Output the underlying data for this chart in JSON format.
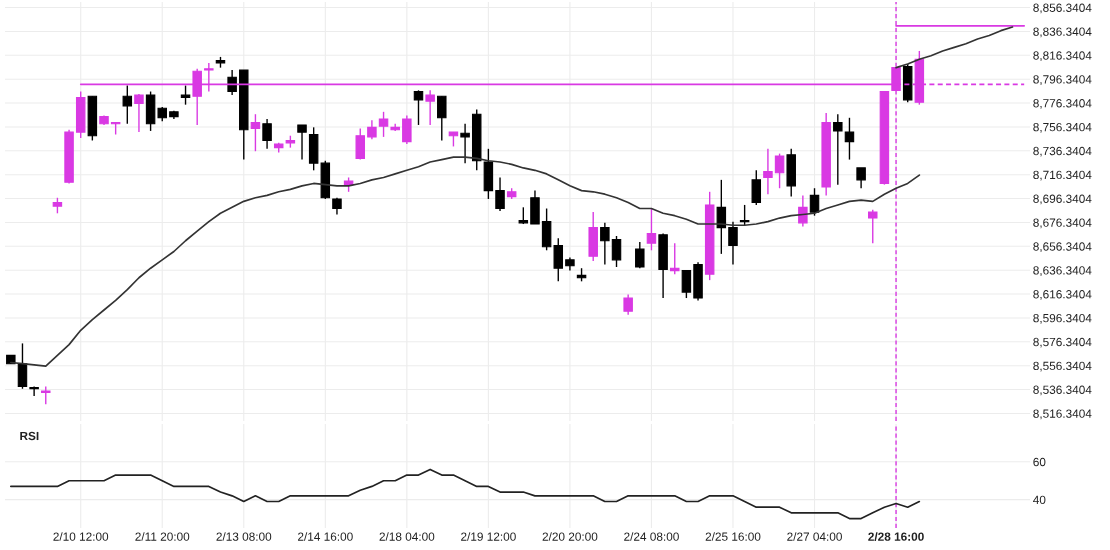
{
  "chart_data": [
    {
      "type": "candlestick",
      "categories": [
        null,
        null,
        null,
        null,
        null,
        null,
        "2/10 12:00",
        null,
        null,
        null,
        null,
        null,
        null,
        "2/11 20:00",
        null,
        null,
        null,
        null,
        null,
        null,
        "2/13 08:00",
        null,
        null,
        null,
        null,
        null,
        null,
        "2/14 16:00",
        null,
        null,
        null,
        null,
        null,
        null,
        "2/18 04:00",
        null,
        null,
        null,
        null,
        null,
        null,
        "2/19 12:00",
        null,
        null,
        null,
        null,
        null,
        null,
        "2/20 20:00",
        null,
        null,
        null,
        null,
        null,
        null,
        "2/24 08:00",
        null,
        null,
        null,
        null,
        null,
        null,
        "2/25 16:00",
        null,
        null,
        null,
        null,
        null,
        null,
        "2/27 04:00",
        null,
        null,
        null,
        null,
        null,
        null,
        "2/28 16:00",
        null,
        null,
        null,
        null,
        null,
        null,
        null,
        null,
        null,
        null,
        null
      ],
      "ohlc": [
        [
          8565,
          8565,
          8558,
          8558
        ],
        [
          8558,
          8575,
          8537,
          8539
        ],
        [
          8538,
          8539,
          8531,
          8537
        ],
        [
          8534,
          8539,
          8524,
          8535
        ],
        [
          8690,
          8697,
          8684,
          8693
        ],
        [
          8710,
          8754,
          8709,
          8752
        ],
        [
          8752,
          8786,
          8747,
          8781
        ],
        [
          8782,
          8782,
          8745,
          8749
        ],
        [
          8759,
          8766,
          8758,
          8765
        ],
        [
          8759,
          8760,
          8750,
          8760
        ],
        [
          8782,
          8791,
          8759,
          8774
        ],
        [
          8776,
          8784,
          8752,
          8783
        ],
        [
          8783,
          8786,
          8753,
          8759
        ],
        [
          8772,
          8773,
          8761,
          8764
        ],
        [
          8769,
          8770,
          8763,
          8765
        ],
        [
          8783,
          8791,
          8775,
          8781
        ],
        [
          8782,
          8805,
          8758,
          8803
        ],
        [
          8804,
          8810,
          8786,
          8805
        ],
        [
          8812,
          8815,
          8806,
          8810
        ],
        [
          8798,
          8804,
          8783,
          8786
        ],
        [
          8804,
          8804,
          8729,
          8754
        ],
        [
          8755,
          8767,
          8736,
          8760
        ],
        [
          8759,
          8763,
          8738,
          8745
        ],
        [
          8739,
          8743,
          8735,
          8742
        ],
        [
          8743,
          8749,
          8739,
          8745
        ],
        [
          8758,
          8758,
          8729,
          8752
        ],
        [
          8750,
          8756,
          8720,
          8726
        ],
        [
          8726,
          8728,
          8696,
          8697
        ],
        [
          8696,
          8697,
          8683,
          8688
        ],
        [
          8708,
          8714,
          8702,
          8711
        ],
        [
          8730,
          8755,
          8729,
          8749
        ],
        [
          8748,
          8762,
          8746,
          8756
        ],
        [
          8757,
          8769,
          8748,
          8763
        ],
        [
          8754,
          8759,
          8753,
          8756
        ],
        [
          8744,
          8766,
          8742,
          8763
        ],
        [
          8786,
          8787,
          8758,
          8779
        ],
        [
          8778,
          8787,
          8758,
          8783
        ],
        [
          8782,
          8782,
          8745,
          8764
        ],
        [
          8749,
          8752,
          8740,
          8752
        ],
        [
          8751,
          8759,
          8726,
          8748
        ],
        [
          8767,
          8771,
          8720,
          8728
        ],
        [
          8727,
          8738,
          8696,
          8703
        ],
        [
          8703,
          8714,
          8686,
          8688
        ],
        [
          8698,
          8705,
          8696,
          8702
        ],
        [
          8678,
          8689,
          8675,
          8676
        ],
        [
          8697,
          8703,
          8675,
          8675
        ],
        [
          8677,
          8688,
          8653,
          8656
        ],
        [
          8657,
          8663,
          8627,
          8638
        ],
        [
          8645,
          8647,
          8636,
          8640
        ],
        [
          8632,
          8638,
          8627,
          8630
        ],
        [
          8648,
          8685,
          8644,
          8672
        ],
        [
          8672,
          8676,
          8641,
          8661
        ],
        [
          8662,
          8665,
          8639,
          8645
        ],
        [
          8602,
          8616,
          8599,
          8613
        ],
        [
          8654,
          8660,
          8638,
          8639
        ],
        [
          8659,
          8688,
          8653,
          8667
        ],
        [
          8666,
          8667,
          8613,
          8637
        ],
        [
          8636,
          8659,
          8633,
          8638
        ],
        [
          8636,
          8636,
          8613,
          8618
        ],
        [
          8641,
          8643,
          8611,
          8613
        ],
        [
          8633,
          8702,
          8628,
          8691
        ],
        [
          8689,
          8712,
          8650,
          8672
        ],
        [
          8672,
          8677,
          8641,
          8657
        ],
        [
          8678,
          8691,
          8674,
          8677
        ],
        [
          8712,
          8720,
          8691,
          8693
        ],
        [
          8714,
          8738,
          8700,
          8719
        ],
        [
          8718,
          8734,
          8705,
          8732
        ],
        [
          8733,
          8738,
          8698,
          8707
        ],
        [
          8676,
          8699,
          8673,
          8689
        ],
        [
          8699,
          8705,
          8682,
          8685
        ],
        [
          8706,
          8768,
          8699,
          8760
        ],
        [
          8760,
          8767,
          8708,
          8753
        ],
        [
          8752,
          8764,
          8729,
          8744
        ],
        [
          8722,
          8722,
          8705,
          8712
        ],
        [
          8680,
          8687,
          8659,
          8685
        ],
        [
          8709,
          8786,
          8708,
          8786
        ],
        [
          8787,
          8806,
          8787,
          8806
        ],
        [
          8807,
          8809,
          8777,
          8779
        ],
        [
          8777,
          8820,
          8775,
          8813
        ],
        null,
        null,
        null,
        null,
        null,
        null,
        null,
        null,
        null
      ],
      "colors": [
        "#000000",
        "#000000",
        "#000000",
        "#d939e3",
        "#d939e3",
        "#d939e3",
        "#d939e3",
        "#000000",
        "#d939e3",
        "#d939e3",
        "#000000",
        "#d939e3",
        "#000000",
        "#000000",
        "#000000",
        "#000000",
        "#d939e3",
        "#d939e3",
        "#000000",
        "#000000",
        "#000000",
        "#d939e3",
        "#000000",
        "#d939e3",
        "#d939e3",
        "#000000",
        "#000000",
        "#000000",
        "#000000",
        "#d939e3",
        "#d939e3",
        "#d939e3",
        "#d939e3",
        "#d939e3",
        "#d939e3",
        "#000000",
        "#d939e3",
        "#000000",
        "#d939e3",
        "#000000",
        "#000000",
        "#000000",
        "#000000",
        "#d939e3",
        "#000000",
        "#000000",
        "#000000",
        "#000000",
        "#000000",
        "#000000",
        "#d939e3",
        "#000000",
        "#000000",
        "#d939e3",
        "#000000",
        "#d939e3",
        "#000000",
        "#d939e3",
        "#000000",
        "#000000",
        "#d939e3",
        "#000000",
        "#000000",
        "#000000",
        "#000000",
        "#d939e3",
        "#d939e3",
        "#000000",
        "#d939e3",
        "#000000",
        "#d939e3",
        "#000000",
        "#000000",
        "#000000",
        "#d939e3",
        "#d939e3",
        "#d939e3",
        "#000000",
        "#d939e3",
        null,
        null,
        null,
        null,
        null,
        null,
        null,
        null,
        null
      ],
      "series": [
        {
          "type": "line",
          "color": "#333333",
          "values": [
            8559,
            8558,
            8557,
            8556,
            8565,
            8574,
            8586,
            8595,
            8603,
            8611,
            8620,
            8630,
            8638,
            8645,
            8652,
            8661,
            8669,
            8677,
            8684,
            8689,
            8694,
            8697,
            8699,
            8702,
            8704,
            8707,
            8709,
            8708,
            8707,
            8707,
            8709,
            8712,
            8714,
            8717,
            8720,
            8723,
            8727,
            8729,
            8731,
            8731,
            8730,
            8728,
            8727,
            8725,
            8722,
            8720,
            8717,
            8712,
            8707,
            8703,
            8702,
            8700,
            8697,
            8693,
            8688,
            8688,
            8684,
            8682,
            8679,
            8675,
            8675,
            8675,
            8674,
            8674,
            8675,
            8677,
            8680,
            8682,
            8683,
            8684,
            8688,
            8691,
            8694,
            8695,
            8694,
            8700,
            8705,
            8709,
            8716,
            null,
            null,
            null,
            null,
            null,
            null,
            null,
            null,
            null
          ]
        },
        {
          "type": "line",
          "color": "#d939e3",
          "values": [
            null,
            null,
            null,
            null,
            null,
            null,
            8792,
            8792,
            8792,
            8792,
            8792,
            8792,
            8792,
            8792,
            8792,
            8792,
            8792,
            8792,
            8792,
            8792,
            8792,
            8792,
            8792,
            8792,
            8792,
            8792,
            8792,
            8792,
            8792,
            8792,
            8792,
            8792,
            8792,
            8792,
            8792,
            8792,
            8792,
            8792,
            8792,
            8792,
            8792,
            8792,
            8792,
            8792,
            8792,
            8792,
            8792,
            8792,
            8792,
            8792,
            8792,
            8792,
            8792,
            8792,
            8792,
            8792,
            8792,
            8792,
            8792,
            8792,
            8792,
            8792,
            8792,
            8792,
            8792,
            8792,
            8792,
            8792,
            8792,
            8792,
            8792,
            8792,
            8792,
            8792,
            8792,
            8792,
            8792,
            null,
            null,
            null,
            null,
            null,
            null,
            null,
            null,
            null,
            null,
            null
          ]
        },
        {
          "type": "line",
          "color": "#d939e3",
          "line_style": "dashed",
          "values": [
            null,
            null,
            null,
            null,
            null,
            null,
            null,
            null,
            null,
            null,
            null,
            null,
            null,
            null,
            null,
            null,
            null,
            null,
            null,
            null,
            null,
            null,
            null,
            null,
            null,
            null,
            null,
            null,
            null,
            null,
            null,
            null,
            null,
            null,
            null,
            null,
            null,
            null,
            null,
            null,
            null,
            null,
            null,
            null,
            null,
            null,
            null,
            null,
            null,
            null,
            null,
            null,
            null,
            null,
            null,
            null,
            null,
            null,
            null,
            null,
            null,
            null,
            null,
            null,
            null,
            null,
            null,
            null,
            null,
            null,
            null,
            null,
            null,
            null,
            null,
            null,
            8792,
            8792,
            8792,
            8792,
            8792,
            8792,
            8792,
            8792,
            8792,
            8792,
            8792,
            8792
          ]
        },
        {
          "type": "line",
          "color": "#d939e3",
          "values": [
            null,
            null,
            null,
            null,
            null,
            null,
            null,
            null,
            null,
            null,
            null,
            null,
            null,
            null,
            null,
            null,
            null,
            null,
            null,
            null,
            null,
            null,
            null,
            null,
            null,
            null,
            null,
            null,
            null,
            null,
            null,
            null,
            null,
            null,
            null,
            null,
            null,
            null,
            null,
            null,
            null,
            null,
            null,
            null,
            null,
            null,
            null,
            null,
            null,
            null,
            null,
            null,
            null,
            null,
            null,
            null,
            null,
            null,
            null,
            null,
            null,
            null,
            null,
            null,
            null,
            null,
            null,
            null,
            null,
            null,
            null,
            null,
            null,
            null,
            null,
            null,
            8841,
            8841,
            8841,
            8841,
            8841,
            8841,
            8841,
            8841,
            8841,
            8841,
            8841,
            8841
          ]
        },
        {
          "type": "line",
          "color": "#333333",
          "values": [
            null,
            null,
            null,
            null,
            null,
            null,
            null,
            null,
            null,
            null,
            null,
            null,
            null,
            null,
            null,
            null,
            null,
            null,
            null,
            null,
            null,
            null,
            null,
            null,
            null,
            null,
            null,
            null,
            null,
            null,
            null,
            null,
            null,
            null,
            null,
            null,
            null,
            null,
            null,
            null,
            null,
            null,
            null,
            null,
            null,
            null,
            null,
            null,
            null,
            null,
            null,
            null,
            null,
            null,
            null,
            null,
            null,
            null,
            null,
            null,
            null,
            null,
            null,
            null,
            null,
            null,
            null,
            null,
            null,
            null,
            null,
            null,
            null,
            null,
            null,
            null,
            8806,
            8809,
            8813,
            8816,
            8820,
            8823,
            8826,
            8830,
            8833,
            8837,
            8840,
            null
          ]
        }
      ],
      "ylim": [
        8510,
        8861
      ],
      "yticks": [
        {
          "value": 8516.3404,
          "label": "8,516.3404"
        },
        {
          "value": 8536.3404,
          "label": "8,536.3404"
        },
        {
          "value": 8556.3404,
          "label": "8,556.3404"
        },
        {
          "value": 8576.3404,
          "label": "8,576.3404"
        },
        {
          "value": 8596.3404,
          "label": "8,596.3404"
        },
        {
          "value": 8616.3404,
          "label": "8,616.3404"
        },
        {
          "value": 8636.3404,
          "label": "8,636.3404"
        },
        {
          "value": 8656.3404,
          "label": "8,656.3404"
        },
        {
          "value": 8676.3404,
          "label": "8,676.3404"
        },
        {
          "value": 8696.3404,
          "label": "8,696.3404"
        },
        {
          "value": 8716.3404,
          "label": "8,716.3404"
        },
        {
          "value": 8736.3404,
          "label": "8,736.3404"
        },
        {
          "value": 8756.3404,
          "label": "8,756.3404"
        },
        {
          "value": 8776.3404,
          "label": "8,776.3404"
        },
        {
          "value": 8796.3404,
          "label": "8,796.3404"
        },
        {
          "value": 8816.3404,
          "label": "8,816.3404"
        },
        {
          "value": 8836.3404,
          "label": "8,836.3404"
        },
        {
          "value": 8856.3404,
          "label": "8,856.3404"
        }
      ],
      "ref_lines": [
        {
          "axis": "x",
          "value": "2/28 16:00",
          "color": "#d939e3",
          "line_style": "dashed"
        }
      ],
      "grid": true,
      "tick_labels": "y"
    },
    {
      "type": "line",
      "title": "RSI",
      "categories": [
        null,
        null,
        null,
        null,
        null,
        null,
        "2/10 12:00",
        null,
        null,
        null,
        null,
        null,
        null,
        "2/11 20:00",
        null,
        null,
        null,
        null,
        null,
        null,
        "2/13 08:00",
        null,
        null,
        null,
        null,
        null,
        null,
        "2/14 16:00",
        null,
        null,
        null,
        null,
        null,
        null,
        "2/18 04:00",
        null,
        null,
        null,
        null,
        null,
        null,
        "2/19 12:00",
        null,
        null,
        null,
        null,
        null,
        null,
        "2/20 20:00",
        null,
        null,
        null,
        null,
        null,
        null,
        "2/24 08:00",
        null,
        null,
        null,
        null,
        null,
        null,
        "2/25 16:00",
        null,
        null,
        null,
        null,
        null,
        null,
        "2/27 04:00",
        null,
        null,
        null,
        null,
        null,
        null,
        "2/28 16:00",
        null,
        null,
        null,
        null,
        null,
        null,
        null,
        null,
        null,
        null,
        null
      ],
      "series": [
        {
          "color": "#222222",
          "values": [
            47,
            47,
            47,
            47,
            47,
            50,
            50,
            50,
            50,
            53,
            53,
            53,
            53,
            50,
            47,
            47,
            47,
            47,
            44,
            42,
            39,
            42,
            39,
            39,
            42,
            42,
            42,
            42,
            42,
            42,
            45,
            47,
            50,
            50,
            53,
            53,
            56,
            53,
            53,
            50,
            47,
            47,
            44,
            44,
            44,
            42,
            42,
            42,
            42,
            42,
            42,
            39,
            39,
            42,
            42,
            42,
            42,
            42,
            39,
            39,
            42,
            42,
            42,
            39,
            36,
            36,
            36,
            33,
            33,
            33,
            33,
            33,
            30,
            30,
            33,
            36,
            38,
            36,
            39,
            null,
            null,
            null,
            null,
            null,
            null,
            null,
            null,
            null
          ]
        }
      ],
      "ylim": [
        25,
        80
      ],
      "yticks": [
        40,
        60
      ],
      "ref_lines": [
        {
          "axis": "x",
          "value": "2/28 16:00",
          "color": "#d939e3",
          "line_style": "dashed"
        }
      ],
      "grid": true
    }
  ]
}
